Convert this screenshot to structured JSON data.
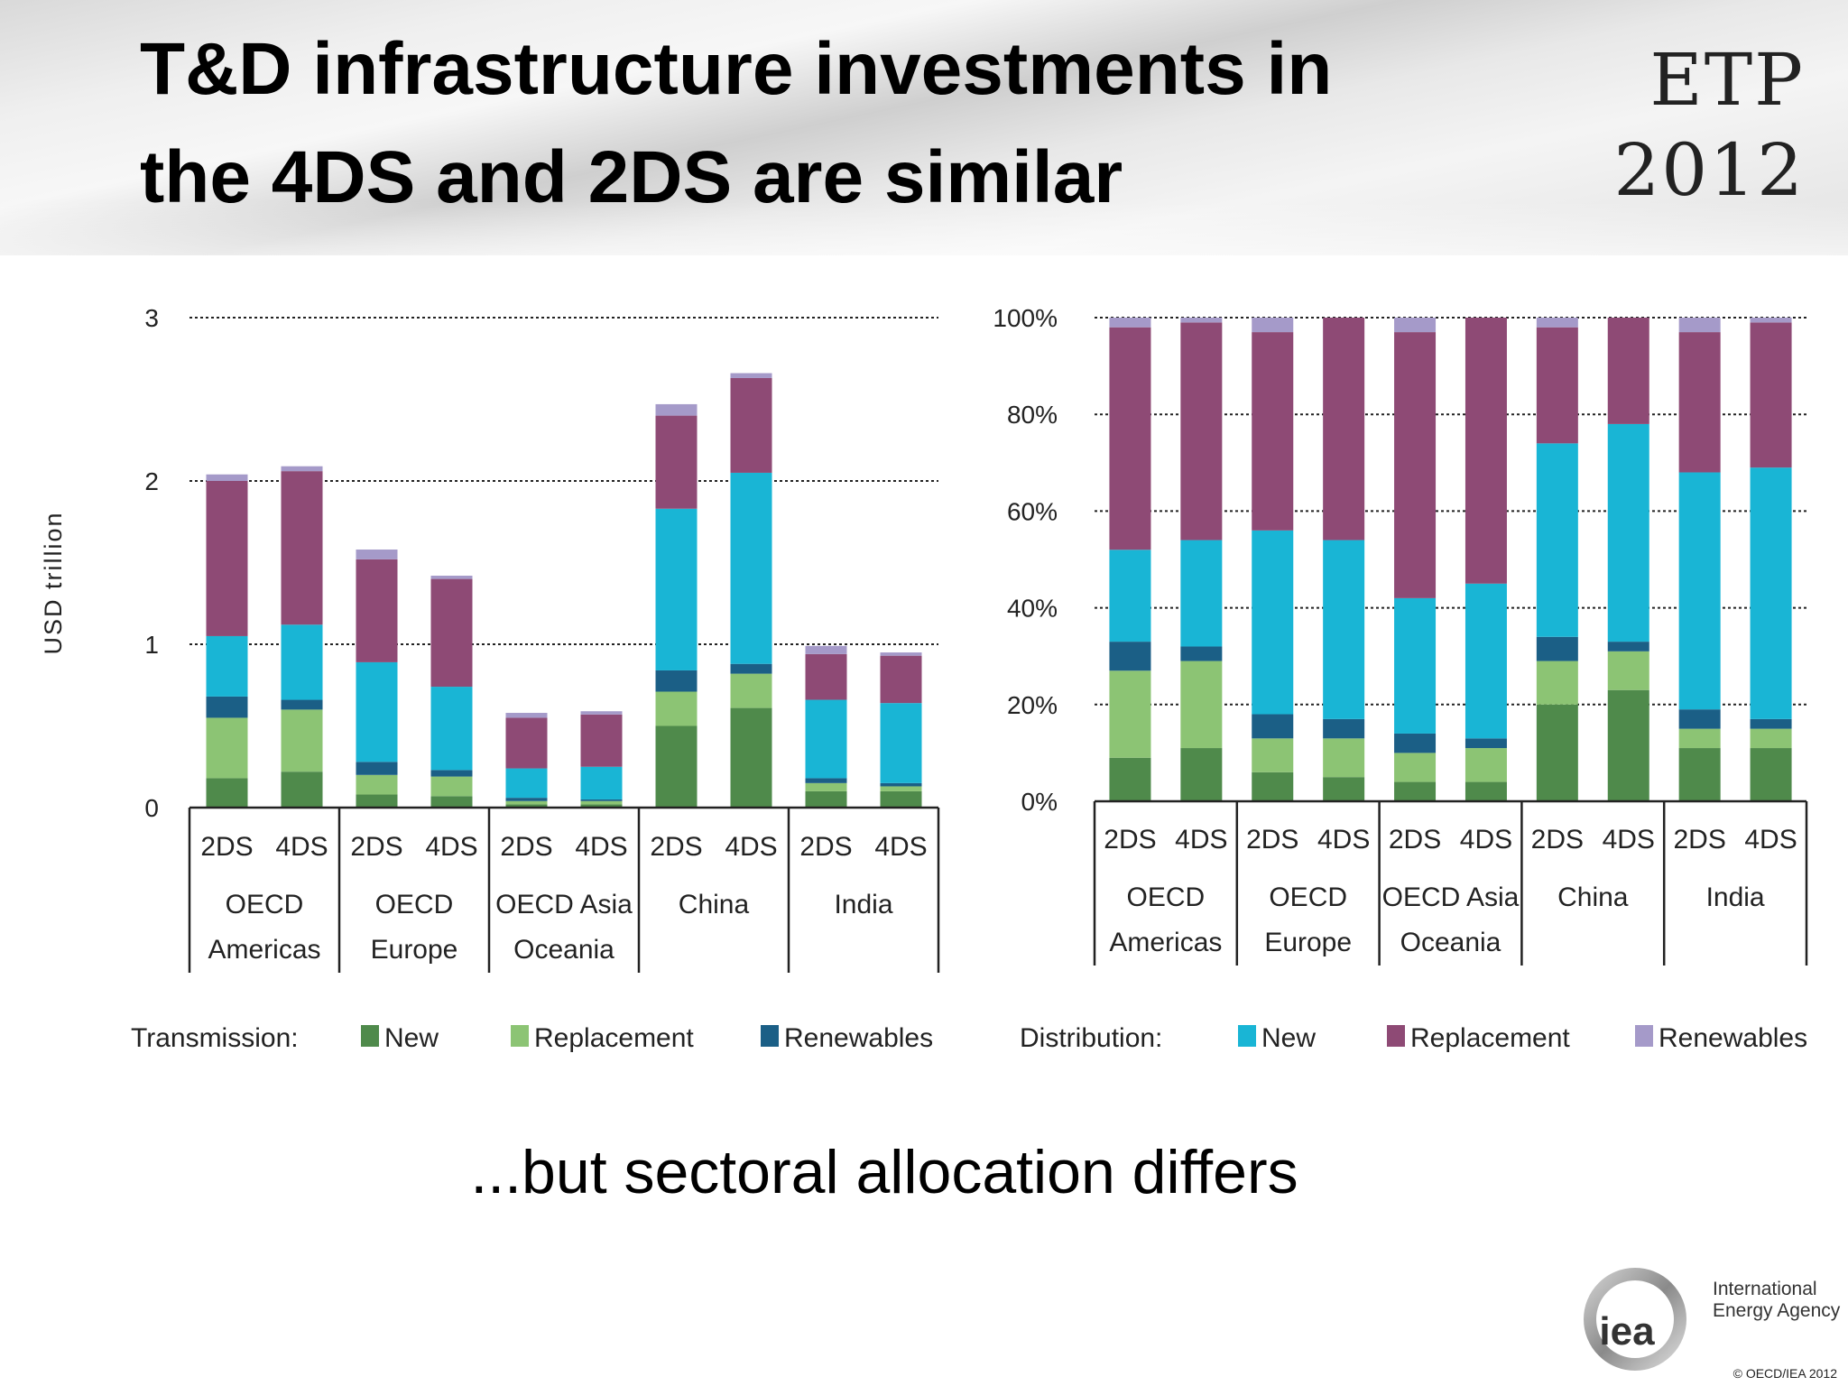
{
  "header": {
    "title_line1": "T&D infrastructure investments in",
    "title_line2": "the 4DS and 2DS are similar",
    "etp_line1": "ETP",
    "etp_line2": "2012"
  },
  "subtitle": "...but sectoral allocation differs",
  "logo": {
    "line1": "International",
    "line2": "Energy Agency",
    "mark": "iea"
  },
  "copyright": "© OECD/IEA 2012",
  "colors": {
    "trans_new": "#4f8a4b",
    "trans_replacement": "#8cc474",
    "trans_renewables": "#1b5f86",
    "dist_new": "#19b5d5",
    "dist_replacement": "#8e4a75",
    "dist_renewables": "#a59ac9"
  },
  "chart_data": [
    {
      "type": "bar",
      "stacked": true,
      "ylabel": "USD trillion",
      "ylim": [
        0,
        3
      ],
      "yticks": [
        "0",
        "1",
        "2",
        "3"
      ],
      "grid": true,
      "regions": [
        "OECD Americas",
        "OECD Europe",
        "OECD Asia Oceania",
        "China",
        "India"
      ],
      "scenarios": [
        "2DS",
        "4DS"
      ],
      "categories": [
        "2DS",
        "4DS",
        "2DS",
        "4DS",
        "2DS",
        "4DS",
        "2DS",
        "4DS",
        "2DS",
        "4DS"
      ],
      "series": [
        {
          "name": "New",
          "group": "Transmission",
          "values": [
            0.18,
            0.22,
            0.08,
            0.07,
            0.02,
            0.02,
            0.5,
            0.61,
            0.1,
            0.1
          ]
        },
        {
          "name": "Replacement",
          "group": "Transmission",
          "values": [
            0.37,
            0.38,
            0.12,
            0.12,
            0.02,
            0.02,
            0.21,
            0.21,
            0.05,
            0.03
          ]
        },
        {
          "name": "Renewables",
          "group": "Transmission",
          "values": [
            0.13,
            0.06,
            0.08,
            0.04,
            0.02,
            0.01,
            0.13,
            0.06,
            0.03,
            0.02
          ]
        },
        {
          "name": "New",
          "group": "Distribution",
          "values": [
            0.37,
            0.46,
            0.61,
            0.51,
            0.18,
            0.2,
            0.99,
            1.17,
            0.48,
            0.49
          ]
        },
        {
          "name": "Replacement",
          "group": "Distribution",
          "values": [
            0.95,
            0.94,
            0.63,
            0.66,
            0.31,
            0.32,
            0.57,
            0.58,
            0.28,
            0.29
          ]
        },
        {
          "name": "Renewables",
          "group": "Distribution",
          "values": [
            0.04,
            0.03,
            0.06,
            0.02,
            0.03,
            0.02,
            0.07,
            0.03,
            0.05,
            0.02
          ]
        }
      ],
      "legend": {
        "label": "Transmission:",
        "items": [
          "New",
          "Replacement",
          "Renewables"
        ],
        "placement": "bottom"
      }
    },
    {
      "type": "bar",
      "stacked": true,
      "percent": true,
      "ylim": [
        0,
        100
      ],
      "yticks": [
        "0%",
        "20%",
        "40%",
        "60%",
        "80%",
        "100%"
      ],
      "grid": true,
      "regions": [
        "OECD Americas",
        "OECD Europe",
        "OECD Asia Oceania",
        "China",
        "India"
      ],
      "scenarios": [
        "2DS",
        "4DS"
      ],
      "categories": [
        "2DS",
        "4DS",
        "2DS",
        "4DS",
        "2DS",
        "4DS",
        "2DS",
        "4DS",
        "2DS",
        "4DS"
      ],
      "series": [
        {
          "name": "New",
          "group": "Transmission",
          "values": [
            9,
            11,
            6,
            5,
            4,
            4,
            20,
            23,
            11,
            11
          ]
        },
        {
          "name": "Replacement",
          "group": "Transmission",
          "values": [
            18,
            18,
            7,
            8,
            6,
            7,
            9,
            8,
            4,
            4
          ]
        },
        {
          "name": "Renewables",
          "group": "Transmission",
          "values": [
            6,
            3,
            5,
            4,
            4,
            2,
            5,
            2,
            4,
            2
          ]
        },
        {
          "name": "New",
          "group": "Distribution",
          "values": [
            19,
            22,
            38,
            37,
            28,
            32,
            40,
            45,
            49,
            52
          ]
        },
        {
          "name": "Replacement",
          "group": "Distribution",
          "values": [
            46,
            45,
            41,
            46,
            55,
            55,
            24,
            22,
            29,
            30
          ]
        },
        {
          "name": "Renewables",
          "group": "Distribution",
          "values": [
            2,
            1,
            3,
            0,
            3,
            0,
            2,
            0,
            3,
            1
          ]
        }
      ],
      "legend": {
        "label": "Distribution:",
        "items": [
          "New",
          "Replacement",
          "Renewables"
        ],
        "placement": "bottom"
      }
    }
  ]
}
